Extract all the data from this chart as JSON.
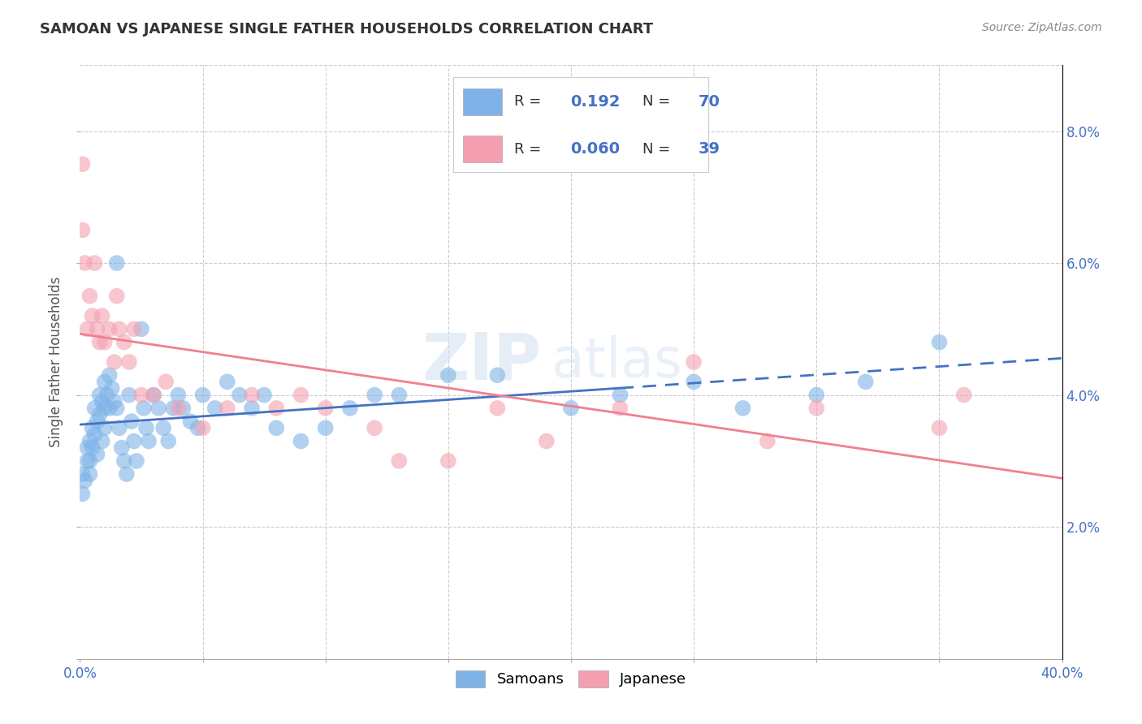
{
  "title": "SAMOAN VS JAPANESE SINGLE FATHER HOUSEHOLDS CORRELATION CHART",
  "source": "Source: ZipAtlas.com",
  "ylabel_label": "Single Father Households",
  "xlim": [
    0.0,
    0.4
  ],
  "ylim": [
    0.0,
    0.09
  ],
  "samoans_R": "0.192",
  "samoans_N": "70",
  "japanese_R": "0.060",
  "japanese_N": "39",
  "samoan_color": "#7fb3e8",
  "japanese_color": "#f4a0b0",
  "samoan_line_color": "#4472c4",
  "japanese_line_color": "#f08090",
  "samoan_circle_edge": "#5a9ad4",
  "japanese_circle_edge": "#e07080",
  "samoans_x": [
    0.001,
    0.001,
    0.002,
    0.003,
    0.003,
    0.004,
    0.004,
    0.004,
    0.005,
    0.005,
    0.006,
    0.006,
    0.007,
    0.007,
    0.008,
    0.008,
    0.009,
    0.009,
    0.01,
    0.01,
    0.01,
    0.011,
    0.012,
    0.012,
    0.013,
    0.014,
    0.015,
    0.015,
    0.016,
    0.017,
    0.018,
    0.019,
    0.02,
    0.021,
    0.022,
    0.023,
    0.025,
    0.026,
    0.027,
    0.028,
    0.03,
    0.032,
    0.034,
    0.036,
    0.038,
    0.04,
    0.042,
    0.045,
    0.048,
    0.05,
    0.055,
    0.06,
    0.065,
    0.07,
    0.075,
    0.08,
    0.09,
    0.1,
    0.11,
    0.12,
    0.13,
    0.15,
    0.17,
    0.2,
    0.22,
    0.25,
    0.27,
    0.3,
    0.32,
    0.35
  ],
  "samoans_y": [
    0.028,
    0.025,
    0.027,
    0.032,
    0.03,
    0.033,
    0.03,
    0.028,
    0.035,
    0.032,
    0.038,
    0.034,
    0.036,
    0.031,
    0.04,
    0.037,
    0.039,
    0.033,
    0.042,
    0.038,
    0.035,
    0.04,
    0.043,
    0.038,
    0.041,
    0.039,
    0.06,
    0.038,
    0.035,
    0.032,
    0.03,
    0.028,
    0.04,
    0.036,
    0.033,
    0.03,
    0.05,
    0.038,
    0.035,
    0.033,
    0.04,
    0.038,
    0.035,
    0.033,
    0.038,
    0.04,
    0.038,
    0.036,
    0.035,
    0.04,
    0.038,
    0.042,
    0.04,
    0.038,
    0.04,
    0.035,
    0.033,
    0.035,
    0.038,
    0.04,
    0.04,
    0.043,
    0.043,
    0.038,
    0.04,
    0.042,
    0.038,
    0.04,
    0.042,
    0.048
  ],
  "japanese_x": [
    0.001,
    0.001,
    0.002,
    0.003,
    0.004,
    0.005,
    0.006,
    0.007,
    0.008,
    0.009,
    0.01,
    0.012,
    0.014,
    0.015,
    0.016,
    0.018,
    0.02,
    0.022,
    0.025,
    0.03,
    0.035,
    0.04,
    0.05,
    0.06,
    0.07,
    0.08,
    0.09,
    0.1,
    0.12,
    0.13,
    0.15,
    0.17,
    0.19,
    0.22,
    0.25,
    0.28,
    0.3,
    0.35,
    0.36
  ],
  "japanese_y": [
    0.075,
    0.065,
    0.06,
    0.05,
    0.055,
    0.052,
    0.06,
    0.05,
    0.048,
    0.052,
    0.048,
    0.05,
    0.045,
    0.055,
    0.05,
    0.048,
    0.045,
    0.05,
    0.04,
    0.04,
    0.042,
    0.038,
    0.035,
    0.038,
    0.04,
    0.038,
    0.04,
    0.038,
    0.035,
    0.03,
    0.03,
    0.038,
    0.033,
    0.038,
    0.045,
    0.033,
    0.038,
    0.035,
    0.04
  ],
  "sam_line_solid_end": 0.22,
  "jap_line_end": 0.4
}
